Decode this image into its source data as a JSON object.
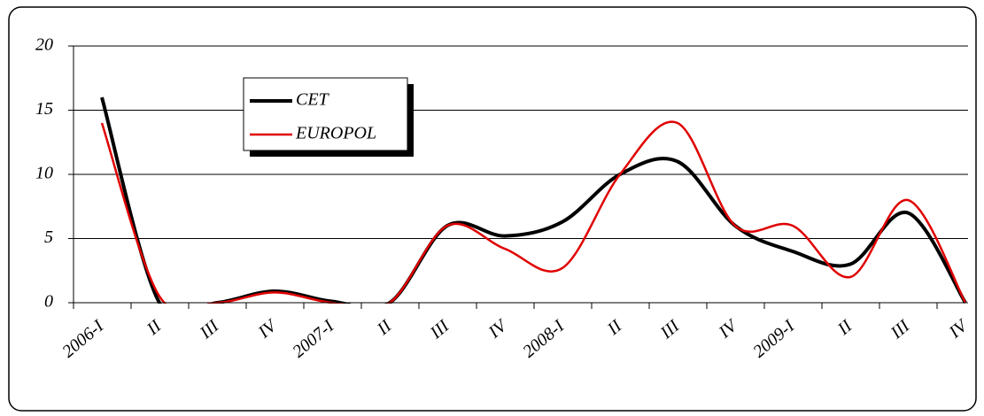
{
  "chart_data": {
    "type": "line",
    "categories": [
      "2006-I",
      "II",
      "III",
      "IV",
      "2007-I",
      "II",
      "III",
      "IV",
      "2008-I",
      "II",
      "III",
      "IV",
      "2009-I",
      "II",
      "III",
      "IV"
    ],
    "series": [
      {
        "name": "CET",
        "color": "#000000",
        "values": [
          16,
          0,
          0,
          0.9,
          0.1,
          0,
          6,
          5.2,
          6.3,
          10,
          11,
          6,
          4,
          3,
          7,
          0
        ]
      },
      {
        "name": "EUROPOL",
        "color": "#e00000",
        "values": [
          14,
          0.5,
          0,
          0.8,
          0,
          0,
          6,
          4.2,
          2.7,
          10,
          14,
          6,
          6,
          2,
          8,
          0
        ]
      }
    ],
    "ylim": [
      0,
      20
    ],
    "yticks": [
      0,
      5,
      10,
      15,
      20
    ],
    "grid": true,
    "legend": "upper left"
  }
}
